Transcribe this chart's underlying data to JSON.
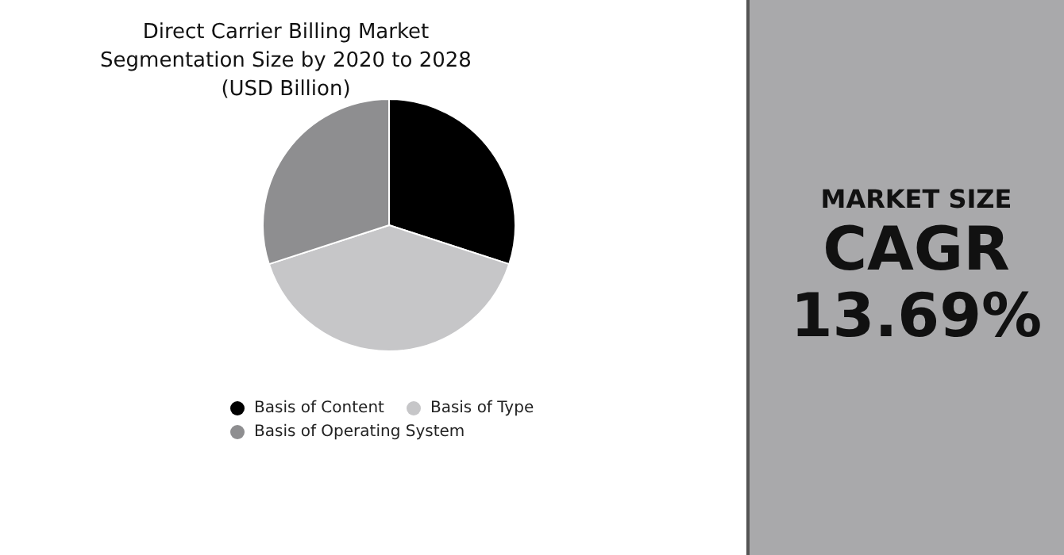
{
  "chart_data": {
    "type": "pie",
    "title": "Direct Carrier Billing Market Segmentation Size by 2020 to 2028 (USD Billion)",
    "categories": [
      "Basis of Content",
      "Basis of Type",
      "Basis of Operating System"
    ],
    "values": [
      30,
      40,
      30
    ],
    "colors": [
      "#000000",
      "#c6c6c8",
      "#8e8e90"
    ],
    "legend": "bottom",
    "annotations": [
      "MARKET SIZE",
      "CAGR",
      "13.69%"
    ]
  }
}
